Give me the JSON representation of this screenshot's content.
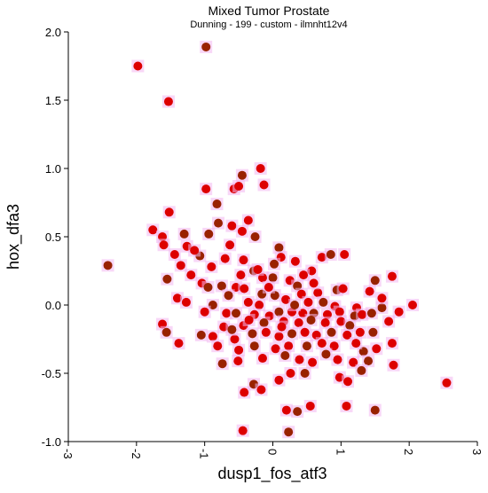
{
  "chart_data": {
    "type": "scatter",
    "title": "Mixed Tumor Prostate",
    "subtitle": "Dunning - 199 - custom - ilmnht12v4",
    "xlabel": "dusp1_fos_atf3",
    "ylabel": "hox_dfa3",
    "xlim": [
      -3,
      3
    ],
    "ylim": [
      -1.0,
      2.0
    ],
    "x_ticks": [
      -3,
      -2,
      -1,
      0,
      1,
      2,
      3
    ],
    "x_tick_labels": [
      "-3",
      "-2",
      "-1",
      "0",
      "1",
      "2",
      "3"
    ],
    "y_ticks": [
      2.0,
      1.5,
      1.0,
      0.5,
      0.0,
      -0.5,
      -1.0
    ],
    "y_tick_labels": [
      "2.0",
      "1.5",
      "1.0",
      "0.5",
      "0.0",
      "-0.5",
      "-1.0"
    ],
    "grid": false,
    "colors": {
      "point_fills": [
        "#dd0000",
        "#992200"
      ],
      "point_halo": "#f3b6f0",
      "axis": "#000000"
    },
    "series": [
      {
        "points": [
          [
            -0.98,
            1.89
          ],
          [
            -1.98,
            1.75
          ],
          [
            -1.53,
            1.49
          ],
          [
            -2.42,
            0.29
          ],
          [
            -1.52,
            0.68
          ],
          [
            -0.18,
            1.0
          ],
          [
            -0.45,
            0.95
          ],
          [
            -0.57,
            0.85
          ],
          [
            -0.98,
            0.85
          ],
          [
            -0.82,
            0.74
          ],
          [
            -0.5,
            0.87
          ],
          [
            -0.13,
            0.88
          ],
          [
            -0.8,
            0.6
          ],
          [
            -1.76,
            0.55
          ],
          [
            -1.62,
            0.5
          ],
          [
            -1.3,
            0.52
          ],
          [
            -0.36,
            0.62
          ],
          [
            -0.6,
            0.58
          ],
          [
            -0.94,
            0.52
          ],
          [
            -1.26,
            0.43
          ],
          [
            -1.44,
            0.37
          ],
          [
            -1.07,
            0.36
          ],
          [
            -1.35,
            0.29
          ],
          [
            -1.2,
            0.22
          ],
          [
            -1.55,
            0.19
          ],
          [
            -1.04,
            0.16
          ],
          [
            -0.45,
            0.54
          ],
          [
            -0.26,
            0.5
          ],
          [
            -0.63,
            0.44
          ],
          [
            -0.7,
            0.34
          ],
          [
            -0.75,
            0.14
          ],
          [
            -1.4,
            0.05
          ],
          [
            -1.27,
            0.02
          ],
          [
            -0.88,
            0.0
          ],
          [
            -1.0,
            -0.05
          ],
          [
            -0.54,
            0.13
          ],
          [
            -0.28,
            0.25
          ],
          [
            -0.43,
            0.33
          ],
          [
            -0.47,
            0.22
          ],
          [
            0.09,
            0.42
          ],
          [
            0.12,
            0.35
          ],
          [
            0.72,
            0.35
          ],
          [
            0.85,
            0.37
          ],
          [
            1.05,
            0.37
          ],
          [
            0.57,
            0.25
          ],
          [
            0.0,
            0.2
          ],
          [
            -0.15,
            0.2
          ],
          [
            0.25,
            0.18
          ],
          [
            0.36,
            0.14
          ],
          [
            0.66,
            0.09
          ],
          [
            0.42,
            0.08
          ],
          [
            0.94,
            0.11
          ],
          [
            1.03,
            0.12
          ],
          [
            -0.42,
            0.12
          ],
          [
            -0.16,
            0.08
          ],
          [
            -0.36,
            0.02
          ],
          [
            -0.2,
            0.0
          ],
          [
            0.03,
            0.07
          ],
          [
            0.19,
            0.04
          ],
          [
            0.52,
            0.02
          ],
          [
            0.74,
            0.02
          ],
          [
            0.91,
            -0.01
          ],
          [
            1.42,
            0.1
          ],
          [
            1.5,
            0.18
          ],
          [
            1.75,
            0.21
          ],
          [
            1.23,
            -0.02
          ],
          [
            1.6,
            -0.02
          ],
          [
            2.05,
            0.0
          ],
          [
            -0.68,
            -0.06
          ],
          [
            -0.54,
            -0.06
          ],
          [
            -0.27,
            -0.07
          ],
          [
            -0.05,
            -0.08
          ],
          [
            0.09,
            -0.05
          ],
          [
            0.28,
            -0.05
          ],
          [
            0.44,
            -0.06
          ],
          [
            0.6,
            -0.06
          ],
          [
            0.8,
            -0.07
          ],
          [
            0.98,
            -0.05
          ],
          [
            1.2,
            -0.08
          ],
          [
            1.31,
            -0.07
          ],
          [
            -1.62,
            -0.14
          ],
          [
            -1.56,
            -0.2
          ],
          [
            -0.72,
            -0.16
          ],
          [
            -0.43,
            -0.15
          ],
          [
            -0.13,
            -0.13
          ],
          [
            0.16,
            -0.12
          ],
          [
            0.38,
            -0.13
          ],
          [
            0.56,
            -0.11
          ],
          [
            0.77,
            -0.13
          ],
          [
            1.0,
            -0.12
          ],
          [
            1.13,
            -0.15
          ],
          [
            1.7,
            -0.12
          ],
          [
            -1.38,
            -0.28
          ],
          [
            -1.05,
            -0.22
          ],
          [
            -0.88,
            -0.23
          ],
          [
            -0.56,
            -0.25
          ],
          [
            -0.3,
            -0.21
          ],
          [
            -0.1,
            -0.2
          ],
          [
            0.09,
            -0.23
          ],
          [
            0.28,
            -0.21
          ],
          [
            0.47,
            -0.2
          ],
          [
            0.64,
            -0.22
          ],
          [
            0.86,
            -0.2
          ],
          [
            1.09,
            -0.22
          ],
          [
            1.28,
            -0.2
          ],
          [
            1.47,
            -0.2
          ],
          [
            -0.81,
            -0.3
          ],
          [
            -0.5,
            -0.33
          ],
          [
            -0.27,
            -0.3
          ],
          [
            0.04,
            -0.32
          ],
          [
            0.23,
            -0.3
          ],
          [
            0.5,
            -0.3
          ],
          [
            0.72,
            -0.28
          ],
          [
            0.9,
            -0.3
          ],
          [
            1.33,
            -0.34
          ],
          [
            1.52,
            -0.32
          ],
          [
            1.75,
            -0.28
          ],
          [
            -0.74,
            -0.43
          ],
          [
            -0.51,
            -0.41
          ],
          [
            -0.15,
            -0.39
          ],
          [
            0.18,
            -0.37
          ],
          [
            0.39,
            -0.4
          ],
          [
            0.58,
            -0.42
          ],
          [
            0.78,
            -0.36
          ],
          [
            0.95,
            -0.4
          ],
          [
            1.18,
            -0.42
          ],
          [
            1.4,
            -0.41
          ],
          [
            1.77,
            -0.44
          ],
          [
            -0.42,
            -0.64
          ],
          [
            -0.28,
            -0.58
          ],
          [
            0.09,
            -0.55
          ],
          [
            0.26,
            -0.5
          ],
          [
            0.47,
            -0.5
          ],
          [
            0.98,
            -0.53
          ],
          [
            1.1,
            -0.56
          ],
          [
            1.3,
            -0.48
          ],
          [
            -0.17,
            -0.62
          ],
          [
            0.2,
            -0.77
          ],
          [
            0.36,
            -0.78
          ],
          [
            0.55,
            -0.74
          ],
          [
            1.08,
            -0.74
          ],
          [
            1.5,
            -0.77
          ],
          [
            2.55,
            -0.57
          ],
          [
            -0.44,
            -0.92
          ],
          [
            0.23,
            -0.93
          ],
          [
            -0.06,
            0.13
          ],
          [
            -0.22,
            0.26
          ],
          [
            0.02,
            0.3
          ],
          [
            0.33,
            0.32
          ],
          [
            0.45,
            0.22
          ],
          [
            -0.65,
            0.07
          ],
          [
            -0.9,
            0.28
          ],
          [
            -1.15,
            0.4
          ],
          [
            -0.95,
            0.13
          ],
          [
            -1.6,
            0.44
          ],
          [
            1.6,
            0.05
          ],
          [
            1.45,
            -0.06
          ],
          [
            1.85,
            -0.05
          ],
          [
            -0.35,
            -0.11
          ],
          [
            0.32,
            0.0
          ],
          [
            0.6,
            0.16
          ],
          [
            0.13,
            -0.16
          ],
          [
            -0.6,
            -0.18
          ],
          [
            1.22,
            -0.28
          ]
        ]
      }
    ]
  }
}
